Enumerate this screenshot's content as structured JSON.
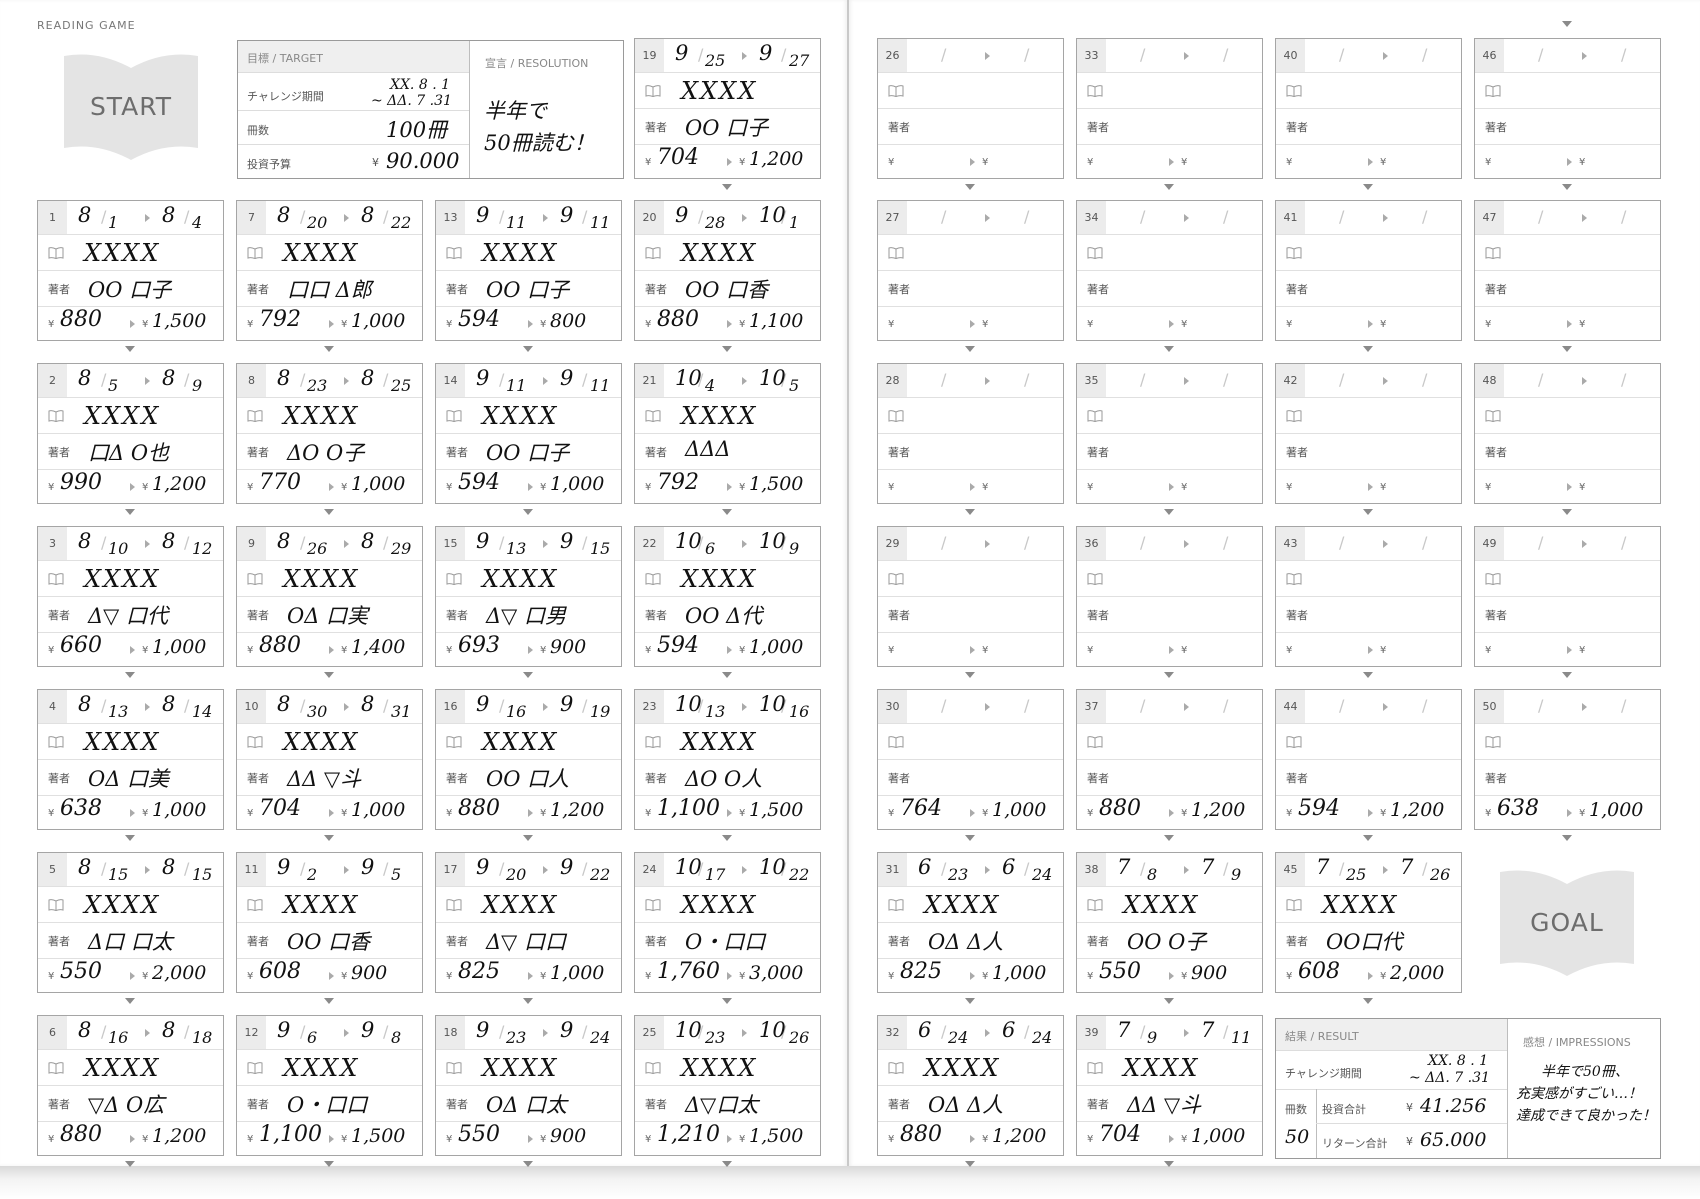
{
  "header": {
    "label": "READING GAME"
  },
  "badges": {
    "start": "START",
    "goal": "GOAL"
  },
  "target": {
    "title": "目標 / TARGET",
    "period_label": "チャレンジ期間",
    "period_start": "XX. 8 . 1",
    "period_end": "~ ΔΔ. 7 .31",
    "count_label": "冊数",
    "count_value": "100冊",
    "budget_label": "投資予算",
    "budget_value": "90.000",
    "yen": "¥"
  },
  "resolution": {
    "title": "宣言 / RESOLUTION",
    "line1": "半年で",
    "line2": "50冊読む！"
  },
  "result": {
    "title": "結果 / RESULT",
    "period_label": "チャレンジ期間",
    "period_start": "XX. 8 . 1",
    "period_end": "~ ΔΔ. 7 .31",
    "count_label": "冊数",
    "count_value": "50",
    "invest_label": "投資合計",
    "invest_value": "41.256",
    "return_label": "リターン合計",
    "return_value": "65.000",
    "yen": "¥"
  },
  "impressions": {
    "title": "感想 / IMPRESSIONS",
    "line1": "半年で50冊、",
    "line2": "充実感がすごい…！",
    "line3": "達成できて良かった！"
  },
  "card_labels": {
    "author": "著者",
    "yen": "¥",
    "slash": "/"
  },
  "cards": [
    {
      "num": "1",
      "sm": "8",
      "sd": "1",
      "em": "8",
      "ed": "4",
      "title": "XXXX",
      "author": "OO 口子",
      "price": "880",
      "ret": "1,500"
    },
    {
      "num": "2",
      "sm": "8",
      "sd": "5",
      "em": "8",
      "ed": "9",
      "title": "XXXX",
      "author": "口Δ O也",
      "price": "990",
      "ret": "1,200"
    },
    {
      "num": "3",
      "sm": "8",
      "sd": "10",
      "em": "8",
      "ed": "12",
      "title": "XXXX",
      "author": "Δ▽ 口代",
      "price": "660",
      "ret": "1,000"
    },
    {
      "num": "4",
      "sm": "8",
      "sd": "13",
      "em": "8",
      "ed": "14",
      "title": "XXXX",
      "author": "OΔ 口美",
      "price": "638",
      "ret": "1,000"
    },
    {
      "num": "5",
      "sm": "8",
      "sd": "15",
      "em": "8",
      "ed": "15",
      "title": "XXXX",
      "author": "Δ口 口太",
      "price": "550",
      "ret": "2,000"
    },
    {
      "num": "6",
      "sm": "8",
      "sd": "16",
      "em": "8",
      "ed": "18",
      "title": "XXXX",
      "author": "▽Δ O広",
      "price": "880",
      "ret": "1,200"
    },
    {
      "num": "7",
      "sm": "8",
      "sd": "20",
      "em": "8",
      "ed": "22",
      "title": "XXXX",
      "author": "口口 Δ郎",
      "price": "792",
      "ret": "1,000"
    },
    {
      "num": "8",
      "sm": "8",
      "sd": "23",
      "em": "8",
      "ed": "25",
      "title": "XXXX",
      "author": "ΔO O子",
      "price": "770",
      "ret": "1,000"
    },
    {
      "num": "9",
      "sm": "8",
      "sd": "26",
      "em": "8",
      "ed": "29",
      "title": "XXXX",
      "author": "OΔ 口実",
      "price": "880",
      "ret": "1,400"
    },
    {
      "num": "10",
      "sm": "8",
      "sd": "30",
      "em": "8",
      "ed": "31",
      "title": "XXXX",
      "author": "ΔΔ ▽斗",
      "price": "704",
      "ret": "1,000"
    },
    {
      "num": "11",
      "sm": "9",
      "sd": "2",
      "em": "9",
      "ed": "5",
      "title": "XXXX",
      "author": "OO 口香",
      "price": "608",
      "ret": "900"
    },
    {
      "num": "12",
      "sm": "9",
      "sd": "6",
      "em": "9",
      "ed": "8",
      "title": "XXXX",
      "author": "O・口口",
      "price": "1,100",
      "ret": "1,500"
    },
    {
      "num": "13",
      "sm": "9",
      "sd": "11",
      "em": "9",
      "ed": "11",
      "title": "XXXX",
      "author": "OO 口子",
      "price": "594",
      "ret": "800"
    },
    {
      "num": "14",
      "sm": "9",
      "sd": "11",
      "em": "9",
      "ed": "11",
      "title": "XXXX",
      "author": "OO 口子",
      "price": "594",
      "ret": "1,000"
    },
    {
      "num": "15",
      "sm": "9",
      "sd": "13",
      "em": "9",
      "ed": "15",
      "title": "XXXX",
      "author": "Δ▽ 口男",
      "price": "693",
      "ret": "900"
    },
    {
      "num": "16",
      "sm": "9",
      "sd": "16",
      "em": "9",
      "ed": "19",
      "title": "XXXX",
      "author": "OO 口人",
      "price": "880",
      "ret": "1,200"
    },
    {
      "num": "17",
      "sm": "9",
      "sd": "20",
      "em": "9",
      "ed": "22",
      "title": "XXXX",
      "author": "Δ▽ 口口",
      "price": "825",
      "ret": "1,000"
    },
    {
      "num": "18",
      "sm": "9",
      "sd": "23",
      "em": "9",
      "ed": "24",
      "title": "XXXX",
      "author": "OΔ 口太",
      "price": "550",
      "ret": "900"
    },
    {
      "num": "19",
      "sm": "9",
      "sd": "25",
      "em": "9",
      "ed": "27",
      "title": "XXXX",
      "author": "OO 口子",
      "price": "704",
      "ret": "1,200"
    },
    {
      "num": "20",
      "sm": "9",
      "sd": "28",
      "em": "10",
      "ed": "1",
      "title": "XXXX",
      "author": "OO 口香",
      "price": "880",
      "ret": "1,100"
    },
    {
      "num": "21",
      "sm": "10",
      "sd": "4",
      "em": "10",
      "ed": "5",
      "title": "XXXX",
      "author": "ΔΔΔ",
      "price": "792",
      "ret": "1,500"
    },
    {
      "num": "22",
      "sm": "10",
      "sd": "6",
      "em": "10",
      "ed": "9",
      "title": "XXXX",
      "author": "OO Δ代",
      "price": "594",
      "ret": "1,000"
    },
    {
      "num": "23",
      "sm": "10",
      "sd": "13",
      "em": "10",
      "ed": "16",
      "title": "XXXX",
      "author": "ΔO O人",
      "price": "1,100",
      "ret": "1,500"
    },
    {
      "num": "24",
      "sm": "10",
      "sd": "17",
      "em": "10",
      "ed": "22",
      "title": "XXXX",
      "author": "O・口口",
      "price": "1,760",
      "ret": "3,000"
    },
    {
      "num": "25",
      "sm": "10",
      "sd": "23",
      "em": "10",
      "ed": "26",
      "title": "XXXX",
      "author": "Δ▽口太",
      "price": "1,210",
      "ret": "1,500"
    },
    {
      "num": "26",
      "sm": "",
      "sd": "",
      "em": "",
      "ed": "",
      "title": "",
      "author": "",
      "price": "",
      "ret": ""
    },
    {
      "num": "27",
      "sm": "",
      "sd": "",
      "em": "",
      "ed": "",
      "title": "",
      "author": "",
      "price": "",
      "ret": ""
    },
    {
      "num": "28",
      "sm": "",
      "sd": "",
      "em": "",
      "ed": "",
      "title": "",
      "author": "",
      "price": "",
      "ret": ""
    },
    {
      "num": "29",
      "sm": "",
      "sd": "",
      "em": "",
      "ed": "",
      "title": "",
      "author": "",
      "price": "",
      "ret": ""
    },
    {
      "num": "30",
      "sm": "",
      "sd": "",
      "em": "",
      "ed": "",
      "title": "",
      "author": "",
      "price": "764",
      "ret": "1,000"
    },
    {
      "num": "31",
      "sm": "6",
      "sd": "23",
      "em": "6",
      "ed": "24",
      "title": "XXXX",
      "author": "OΔ Δ人",
      "price": "825",
      "ret": "1,000"
    },
    {
      "num": "32",
      "sm": "6",
      "sd": "24",
      "em": "6",
      "ed": "24",
      "title": "XXXX",
      "author": "OΔ Δ人",
      "price": "880",
      "ret": "1,200"
    },
    {
      "num": "33",
      "sm": "",
      "sd": "",
      "em": "",
      "ed": "",
      "title": "",
      "author": "",
      "price": "",
      "ret": ""
    },
    {
      "num": "34",
      "sm": "",
      "sd": "",
      "em": "",
      "ed": "",
      "title": "",
      "author": "",
      "price": "",
      "ret": ""
    },
    {
      "num": "35",
      "sm": "",
      "sd": "",
      "em": "",
      "ed": "",
      "title": "",
      "author": "",
      "price": "",
      "ret": ""
    },
    {
      "num": "36",
      "sm": "",
      "sd": "",
      "em": "",
      "ed": "",
      "title": "",
      "author": "",
      "price": "",
      "ret": ""
    },
    {
      "num": "37",
      "sm": "",
      "sd": "",
      "em": "",
      "ed": "",
      "title": "",
      "author": "",
      "price": "880",
      "ret": "1,200"
    },
    {
      "num": "38",
      "sm": "7",
      "sd": "8",
      "em": "7",
      "ed": "9",
      "title": "XXXX",
      "author": "OO O子",
      "price": "550",
      "ret": "900"
    },
    {
      "num": "39",
      "sm": "7",
      "sd": "9",
      "em": "7",
      "ed": "11",
      "title": "XXXX",
      "author": "ΔΔ ▽斗",
      "price": "704",
      "ret": "1,000"
    },
    {
      "num": "40",
      "sm": "",
      "sd": "",
      "em": "",
      "ed": "",
      "title": "",
      "author": "",
      "price": "",
      "ret": ""
    },
    {
      "num": "41",
      "sm": "",
      "sd": "",
      "em": "",
      "ed": "",
      "title": "",
      "author": "",
      "price": "",
      "ret": ""
    },
    {
      "num": "42",
      "sm": "",
      "sd": "",
      "em": "",
      "ed": "",
      "title": "",
      "author": "",
      "price": "",
      "ret": ""
    },
    {
      "num": "43",
      "sm": "",
      "sd": "",
      "em": "",
      "ed": "",
      "title": "",
      "author": "",
      "price": "",
      "ret": ""
    },
    {
      "num": "44",
      "sm": "",
      "sd": "",
      "em": "",
      "ed": "",
      "title": "",
      "author": "",
      "price": "594",
      "ret": "1,200"
    },
    {
      "num": "45",
      "sm": "7",
      "sd": "25",
      "em": "7",
      "ed": "26",
      "title": "XXXX",
      "author": "OO口代",
      "price": "608",
      "ret": "2,000"
    },
    {
      "num": "46",
      "sm": "",
      "sd": "",
      "em": "",
      "ed": "",
      "title": "",
      "author": "",
      "price": "",
      "ret": ""
    },
    {
      "num": "47",
      "sm": "",
      "sd": "",
      "em": "",
      "ed": "",
      "title": "",
      "author": "",
      "price": "",
      "ret": ""
    },
    {
      "num": "48",
      "sm": "",
      "sd": "",
      "em": "",
      "ed": "",
      "title": "",
      "author": "",
      "price": "",
      "ret": ""
    },
    {
      "num": "49",
      "sm": "",
      "sd": "",
      "em": "",
      "ed": "",
      "title": "",
      "author": "",
      "price": "",
      "ret": ""
    },
    {
      "num": "50",
      "sm": "",
      "sd": "",
      "em": "",
      "ed": "",
      "title": "",
      "author": "",
      "price": "638",
      "ret": "1,000"
    }
  ]
}
